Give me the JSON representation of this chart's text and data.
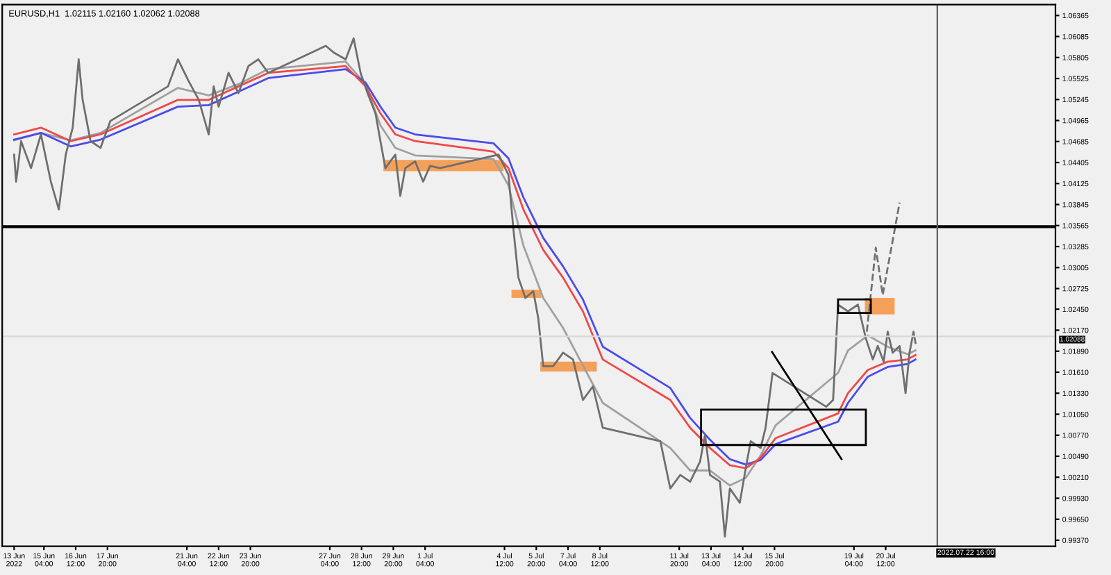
{
  "chart_data": {
    "type": "line",
    "title": "EURUSD,H1  1.02115 1.02160 1.02062 1.02088",
    "grid": false,
    "legend": false,
    "line_style": "solid",
    "xlim": [
      "2022-06-13T10:00",
      "2022-07-27T15:00"
    ],
    "ylim": [
      0.9929,
      1.0651
    ],
    "xticks": [
      {
        "value": "2022-06-13T22:00",
        "label": "13 Jun 2022"
      },
      {
        "value": "2022-06-15T04:00",
        "label": "15 Jun 04:00"
      },
      {
        "value": "2022-06-16T12:00",
        "label": "16 Jun 12:00"
      },
      {
        "value": "2022-06-17T20:00",
        "label": "17 Jun 20:00"
      },
      {
        "value": "2022-06-21T04:00",
        "label": "21 Jun 04:00"
      },
      {
        "value": "2022-06-22T12:00",
        "label": "22 Jun 12:00"
      },
      {
        "value": "2022-06-23T20:00",
        "label": "23 Jun 20:00"
      },
      {
        "value": "2022-06-27T04:00",
        "label": "27 Jun 04:00"
      },
      {
        "value": "2022-06-28T12:00",
        "label": "28 Jun 12:00"
      },
      {
        "value": "2022-06-29T20:00",
        "label": "29 Jun 20:00"
      },
      {
        "value": "2022-07-01T04:00",
        "label": "1 Jul 04:00"
      },
      {
        "value": "2022-07-04T12:00",
        "label": "4 Jul 12:00"
      },
      {
        "value": "2022-07-05T20:00",
        "label": "5 Jul 20:00"
      },
      {
        "value": "2022-07-07T04:00",
        "label": "7 Jul 04:00"
      },
      {
        "value": "2022-07-08T12:00",
        "label": "8 Jul 12:00"
      },
      {
        "value": "2022-07-11T20:00",
        "label": "11 Jul 20:00"
      },
      {
        "value": "2022-07-13T04:00",
        "label": "13 Jul 04:00"
      },
      {
        "value": "2022-07-14T12:00",
        "label": "14 Jul 12:00"
      },
      {
        "value": "2022-07-15T20:00",
        "label": "15 Jul 20:00"
      },
      {
        "value": "2022-07-19T04:00",
        "label": "19 Jul 04:00"
      },
      {
        "value": "2022-07-20T12:00",
        "label": "20 Jul 12:00"
      }
    ],
    "yticks": [
      1.06365,
      1.06085,
      1.05805,
      1.05525,
      1.05245,
      1.04965,
      1.04685,
      1.04405,
      1.04125,
      1.03845,
      1.03565,
      1.03285,
      1.03005,
      1.02725,
      {
        "value": 1.0245,
        "label": "1.02450"
      },
      {
        "value": 1.0217,
        "label": "1.02170"
      },
      {
        "value": 1.0189,
        "label": "1.01890"
      },
      {
        "value": 1.0161,
        "label": "1.01610"
      },
      {
        "value": 1.0133,
        "label": "1.01330"
      },
      {
        "value": 1.0105,
        "label": "1.01050"
      },
      {
        "value": 1.0077,
        "label": "1.00770"
      },
      {
        "value": 1.0049,
        "label": "1.00490"
      },
      {
        "value": 1.0021,
        "label": "1.00210"
      },
      {
        "value": 0.9993,
        "label": "0.99930"
      },
      {
        "value": 0.9965,
        "label": "0.99650"
      },
      {
        "value": 0.9937,
        "label": "0.99370"
      }
    ],
    "ref_lines": [
      {
        "axis": "y",
        "value": 1.0355,
        "color": "#000000"
      },
      {
        "axis": "y",
        "value": 1.02088,
        "label": "1.02088",
        "color": "#d8d8d8"
      },
      {
        "axis": "x",
        "value": "2022-07-22T16:00",
        "label": "2022.07.22 16:00",
        "color": "#606060"
      }
    ],
    "series": [
      {
        "color": "#a0a0a0",
        "x": [
          "2022-06-13T22:00",
          "2022-06-15T01:00",
          "2022-06-16T07:00",
          "2022-06-17T13:00",
          "2022-06-20T19:00",
          "2022-06-22T02:00",
          "2022-06-23T08:00",
          "2022-06-24T14:00",
          "2022-06-27T20:00",
          "2022-06-28T16:00",
          "2022-06-29T07:00",
          "2022-06-29T22:00",
          "2022-06-30T18:00",
          "2022-07-04T01:00",
          "2022-07-04T16:00",
          "2022-07-05T07:00",
          "2022-07-06T03:00",
          "2022-07-06T23:00",
          "2022-07-07T19:00",
          "2022-07-08T15:00",
          "2022-07-11T11:00",
          "2022-07-12T07:00",
          "2022-07-13T03:00",
          "2022-07-13T23:00",
          "2022-07-14T15:00",
          "2022-07-15T06:00",
          "2022-07-15T21:00",
          "2022-07-18T12:00",
          "2022-07-18T22:00",
          "2022-07-19T18:00",
          "2022-07-20T14:00",
          "2022-07-21T10:00",
          "2022-07-21T18:00"
        ],
        "values": [
          1.047,
          1.048,
          1.047,
          1.048,
          1.054,
          1.053,
          1.0545,
          1.0565,
          1.0575,
          1.0545,
          1.049,
          1.046,
          1.045,
          1.0445,
          1.041,
          1.033,
          1.026,
          1.022,
          1.017,
          1.012,
          1.006,
          1.003,
          1.003,
          1.001,
          1.002,
          1.005,
          1.009,
          1.016,
          1.019,
          1.021,
          1.0195,
          1.0185,
          1.019
        ]
      },
      {
        "color": "#4a4af0",
        "x": [
          "2022-06-13T22:00",
          "2022-06-15T01:00",
          "2022-06-16T07:00",
          "2022-06-17T13:00",
          "2022-06-20T19:00",
          "2022-06-22T02:00",
          "2022-06-23T08:00",
          "2022-06-24T14:00",
          "2022-06-27T20:00",
          "2022-06-28T16:00",
          "2022-06-29T07:00",
          "2022-06-29T22:00",
          "2022-06-30T18:00",
          "2022-07-04T01:00",
          "2022-07-04T16:00",
          "2022-07-05T07:00",
          "2022-07-06T03:00",
          "2022-07-06T23:00",
          "2022-07-07T19:00",
          "2022-07-08T15:00",
          "2022-07-11T11:00",
          "2022-07-12T07:00",
          "2022-07-13T03:00",
          "2022-07-13T23:00",
          "2022-07-14T15:00",
          "2022-07-15T06:00",
          "2022-07-15T21:00",
          "2022-07-18T12:00",
          "2022-07-18T22:00",
          "2022-07-19T18:00",
          "2022-07-20T14:00",
          "2022-07-21T10:00",
          "2022-07-21T18:00"
        ],
        "values": [
          1.0471,
          1.048,
          1.0462,
          1.0471,
          1.0515,
          1.0517,
          1.0535,
          1.0553,
          1.0565,
          1.0547,
          1.0515,
          1.0487,
          1.0478,
          1.0466,
          1.0446,
          1.0394,
          1.034,
          1.0302,
          1.0258,
          1.0195,
          1.014,
          1.01,
          1.0071,
          1.0045,
          1.0038,
          1.0044,
          1.0065,
          1.0095,
          1.012,
          1.0155,
          1.0168,
          1.0172,
          1.0178
        ]
      },
      {
        "color": "#f04848",
        "x": [
          "2022-06-13T22:00",
          "2022-06-15T01:00",
          "2022-06-16T07:00",
          "2022-06-17T13:00",
          "2022-06-20T19:00",
          "2022-06-22T02:00",
          "2022-06-23T08:00",
          "2022-06-24T14:00",
          "2022-06-27T20:00",
          "2022-06-28T16:00",
          "2022-06-29T07:00",
          "2022-06-29T22:00",
          "2022-06-30T18:00",
          "2022-07-04T01:00",
          "2022-07-04T16:00",
          "2022-07-05T07:00",
          "2022-07-06T03:00",
          "2022-07-06T23:00",
          "2022-07-07T19:00",
          "2022-07-08T15:00",
          "2022-07-11T11:00",
          "2022-07-12T07:00",
          "2022-07-13T03:00",
          "2022-07-13T23:00",
          "2022-07-14T15:00",
          "2022-07-15T06:00",
          "2022-07-15T21:00",
          "2022-07-18T12:00",
          "2022-07-18T22:00",
          "2022-07-19T18:00",
          "2022-07-20T14:00",
          "2022-07-21T10:00",
          "2022-07-21T18:00"
        ],
        "values": [
          1.0478,
          1.0487,
          1.0469,
          1.0478,
          1.0524,
          1.0524,
          1.0542,
          1.056,
          1.0569,
          1.0542,
          1.0506,
          1.0478,
          1.0469,
          1.0455,
          1.0433,
          1.0378,
          1.0324,
          1.0287,
          1.0242,
          1.0178,
          1.0124,
          1.0087,
          1.006,
          1.0037,
          1.0033,
          1.0047,
          1.0073,
          1.0106,
          1.0133,
          1.0164,
          1.0175,
          1.0178,
          1.0184
        ]
      },
      {
        "color": "#6e6e6e",
        "x": [
          "2022-06-13T22:00",
          "2022-06-14T00:00",
          "2022-06-14T05:00",
          "2022-06-14T15:00",
          "2022-06-15T01:00",
          "2022-06-15T11:00",
          "2022-06-15T19:00",
          "2022-06-16T02:00",
          "2022-06-16T09:00",
          "2022-06-16T15:00",
          "2022-06-16T19:00",
          "2022-06-17T03:00",
          "2022-06-17T13:00",
          "2022-06-17T23:00",
          "2022-06-20T09:00",
          "2022-06-20T19:00",
          "2022-06-21T05:00",
          "2022-06-21T16:00",
          "2022-06-22T02:00",
          "2022-06-22T07:00",
          "2022-06-22T12:00",
          "2022-06-22T22:00",
          "2022-06-23T08:00",
          "2022-06-23T18:00",
          "2022-06-24T04:00",
          "2022-06-24T14:00",
          "2022-06-27T00:00",
          "2022-06-27T08:00",
          "2022-06-27T20:00",
          "2022-06-28T04:00",
          "2022-06-28T11:00",
          "2022-06-28T18:00",
          "2022-06-29T02:00",
          "2022-06-29T07:00",
          "2022-06-29T12:00",
          "2022-06-29T22:00",
          "2022-06-30T03:00",
          "2022-06-30T08:00",
          "2022-06-30T18:00",
          "2022-07-01T02:00",
          "2022-07-01T09:00",
          "2022-07-01T19:00",
          "2022-07-04T06:00",
          "2022-07-04T16:00",
          "2022-07-04T21:00",
          "2022-07-05T02:00",
          "2022-07-05T09:00",
          "2022-07-05T17:00",
          "2022-07-05T22:00",
          "2022-07-06T03:00",
          "2022-07-06T13:00",
          "2022-07-06T23:00",
          "2022-07-07T09:00",
          "2022-07-07T19:00",
          "2022-07-08T05:00",
          "2022-07-08T15:00",
          "2022-07-11T01:00",
          "2022-07-11T11:00",
          "2022-07-11T21:00",
          "2022-07-12T07:00",
          "2022-07-12T17:00",
          "2022-07-12T22:00",
          "2022-07-13T03:00",
          "2022-07-13T13:00",
          "2022-07-13T18:00",
          "2022-07-13T23:00",
          "2022-07-14T09:00",
          "2022-07-14T15:00",
          "2022-07-14T20:00",
          "2022-07-15T06:00",
          "2022-07-15T11:00",
          "2022-07-15T18:00",
          "2022-07-18T00:00",
          "2022-07-18T07:00",
          "2022-07-18T12:00",
          "2022-07-18T22:00",
          "2022-07-19T08:00",
          "2022-07-19T16:00",
          "2022-07-19T23:00",
          "2022-07-20T04:00",
          "2022-07-20T10:00",
          "2022-07-20T14:00",
          "2022-07-20T19:00",
          "2022-07-21T02:00",
          "2022-07-21T08:00",
          "2022-07-21T12:00",
          "2022-07-21T16:00",
          "2022-07-21T18:00"
        ],
        "values": [
          1.0451,
          1.0415,
          1.0469,
          1.0433,
          1.0478,
          1.0415,
          1.0378,
          1.0451,
          1.0487,
          1.0578,
          1.0524,
          1.0469,
          1.046,
          1.0496,
          1.0542,
          1.0578,
          1.0551,
          1.0524,
          1.0478,
          1.0542,
          1.0515,
          1.056,
          1.0533,
          1.0569,
          1.0578,
          1.056,
          1.0596,
          1.0587,
          1.0578,
          1.0606,
          1.056,
          1.0533,
          1.0506,
          1.0469,
          1.0433,
          1.0451,
          1.0396,
          1.0433,
          1.0442,
          1.0415,
          1.0436,
          1.0433,
          1.0451,
          1.0424,
          1.0351,
          1.0287,
          1.026,
          1.0269,
          1.0233,
          1.0169,
          1.0169,
          1.0187,
          1.0178,
          1.0124,
          1.0142,
          1.0087,
          1.0069,
          1.0006,
          1.0024,
          1.0015,
          1.0042,
          1.0078,
          1.0024,
          1.0015,
          0.9942,
          1.0006,
          0.9987,
          1.0033,
          1.0069,
          1.006,
          1.0087,
          1.016,
          1.0115,
          1.0124,
          1.0251,
          1.0242,
          1.0251,
          1.0206,
          1.0178,
          1.0196,
          1.0175,
          1.0215,
          1.0187,
          1.0196,
          1.0133,
          1.0187,
          1.0215,
          1.02
        ]
      },
      {
        "color": "#707070",
        "line_style": "dashed",
        "x": [
          "2022-07-19T17:00",
          "2022-07-20T02:00",
          "2022-07-20T09:00",
          "2022-07-21T02:00"
        ],
        "values": [
          1.0215,
          1.0327,
          1.0264,
          1.0387
        ]
      }
    ]
  }
}
